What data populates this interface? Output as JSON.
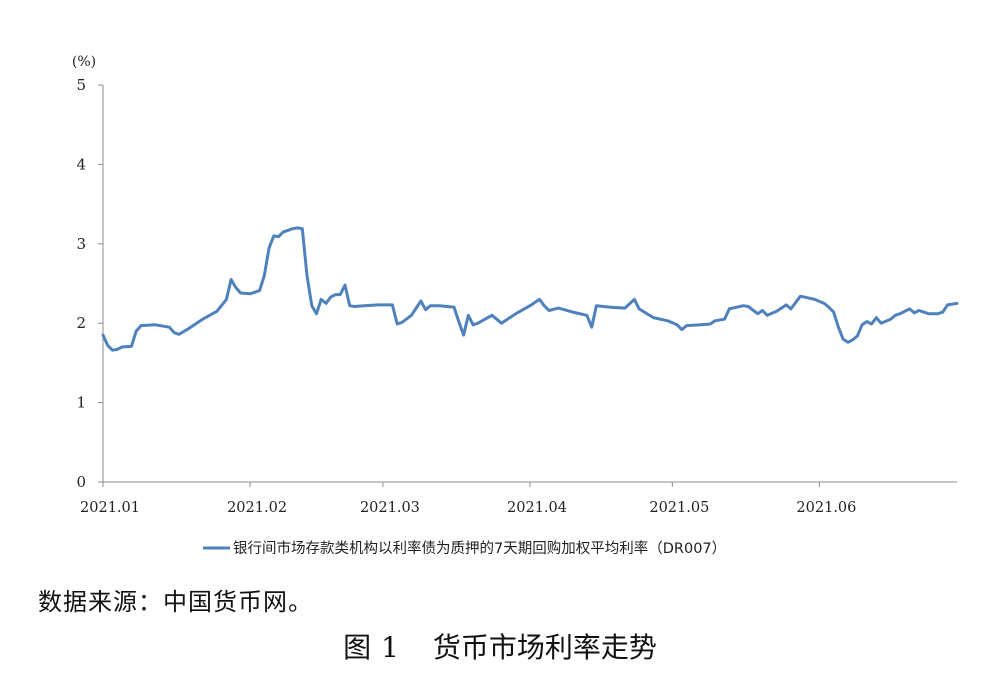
{
  "chart_data": {
    "type": "line",
    "unit_label": "(%)",
    "ylim": [
      0,
      5
    ],
    "yticks": [
      "0",
      "1",
      "2",
      "3",
      "4",
      "5"
    ],
    "x_tick_labels": [
      "2021.01",
      "2021.02",
      "2021.03",
      "2021.04",
      "2021.05",
      "2021.06"
    ],
    "x_tick_dates": [
      "2021-01-01",
      "2021-02-01",
      "2021-03-01",
      "2021-04-01",
      "2021-05-01",
      "2021-06-01"
    ],
    "x_range": [
      "2021-01-01",
      "2021-06-30"
    ],
    "grid": false,
    "legend_position": "bottom",
    "series": [
      {
        "name": "银行间市场存款类机构以利率债为质押的7天期回购加权平均利率（DR007）",
        "color": "#4f81bd",
        "points": [
          [
            "2021-01-01",
            1.85
          ],
          [
            "2021-01-02",
            1.72
          ],
          [
            "2021-01-03",
            1.66
          ],
          [
            "2021-01-04",
            1.67
          ],
          [
            "2021-01-05",
            1.7
          ],
          [
            "2021-01-07",
            1.71
          ],
          [
            "2021-01-08",
            1.9
          ],
          [
            "2021-01-09",
            1.97
          ],
          [
            "2021-01-12",
            1.98
          ],
          [
            "2021-01-15",
            1.95
          ],
          [
            "2021-01-16",
            1.88
          ],
          [
            "2021-01-17",
            1.86
          ],
          [
            "2021-01-19",
            1.93
          ],
          [
            "2021-01-22",
            2.05
          ],
          [
            "2021-01-25",
            2.15
          ],
          [
            "2021-01-27",
            2.3
          ],
          [
            "2021-01-28",
            2.55
          ],
          [
            "2021-01-29",
            2.45
          ],
          [
            "2021-01-30",
            2.38
          ],
          [
            "2021-02-01",
            2.37
          ],
          [
            "2021-02-03",
            2.41
          ],
          [
            "2021-02-04",
            2.6
          ],
          [
            "2021-02-05",
            2.95
          ],
          [
            "2021-02-06",
            3.1
          ],
          [
            "2021-02-07",
            3.09
          ],
          [
            "2021-02-08",
            3.15
          ],
          [
            "2021-02-10",
            3.19
          ],
          [
            "2021-02-11",
            3.2
          ],
          [
            "2021-02-12",
            3.19
          ],
          [
            "2021-02-13",
            2.6
          ],
          [
            "2021-02-14",
            2.22
          ],
          [
            "2021-02-15",
            2.12
          ],
          [
            "2021-02-16",
            2.3
          ],
          [
            "2021-02-17",
            2.25
          ],
          [
            "2021-02-18",
            2.33
          ],
          [
            "2021-02-19",
            2.36
          ],
          [
            "2021-02-20",
            2.36
          ],
          [
            "2021-02-21",
            2.48
          ],
          [
            "2021-02-22",
            2.22
          ],
          [
            "2021-02-23",
            2.21
          ],
          [
            "2021-02-25",
            2.22
          ],
          [
            "2021-02-28",
            2.23
          ],
          [
            "2021-03-03",
            2.23
          ],
          [
            "2021-03-04",
            1.99
          ],
          [
            "2021-03-05",
            2.01
          ],
          [
            "2021-03-07",
            2.1
          ],
          [
            "2021-03-09",
            2.28
          ],
          [
            "2021-03-10",
            2.17
          ],
          [
            "2021-03-11",
            2.22
          ],
          [
            "2021-03-13",
            2.22
          ],
          [
            "2021-03-16",
            2.2
          ],
          [
            "2021-03-17",
            2.02
          ],
          [
            "2021-03-18",
            1.85
          ],
          [
            "2021-03-19",
            2.1
          ],
          [
            "2021-03-20",
            1.98
          ],
          [
            "2021-03-21",
            2.0
          ],
          [
            "2021-03-24",
            2.1
          ],
          [
            "2021-03-26",
            2.0
          ],
          [
            "2021-03-29",
            2.12
          ],
          [
            "2021-04-01",
            2.22
          ],
          [
            "2021-04-03",
            2.3
          ],
          [
            "2021-04-04",
            2.22
          ],
          [
            "2021-04-05",
            2.16
          ],
          [
            "2021-04-07",
            2.19
          ],
          [
            "2021-04-10",
            2.14
          ],
          [
            "2021-04-13",
            2.1
          ],
          [
            "2021-04-14",
            1.95
          ],
          [
            "2021-04-15",
            2.22
          ],
          [
            "2021-04-18",
            2.2
          ],
          [
            "2021-04-21",
            2.19
          ],
          [
            "2021-04-23",
            2.3
          ],
          [
            "2021-04-24",
            2.18
          ],
          [
            "2021-04-27",
            2.07
          ],
          [
            "2021-04-30",
            2.03
          ],
          [
            "2021-05-02",
            1.98
          ],
          [
            "2021-05-03",
            1.92
          ],
          [
            "2021-05-04",
            1.97
          ],
          [
            "2021-05-07",
            1.98
          ],
          [
            "2021-05-09",
            1.99
          ],
          [
            "2021-05-10",
            2.03
          ],
          [
            "2021-05-12",
            2.05
          ],
          [
            "2021-05-13",
            2.18
          ],
          [
            "2021-05-16",
            2.22
          ],
          [
            "2021-05-17",
            2.21
          ],
          [
            "2021-05-19",
            2.12
          ],
          [
            "2021-05-20",
            2.16
          ],
          [
            "2021-05-21",
            2.1
          ],
          [
            "2021-05-23",
            2.15
          ],
          [
            "2021-05-25",
            2.23
          ],
          [
            "2021-05-26",
            2.18
          ],
          [
            "2021-05-28",
            2.34
          ],
          [
            "2021-05-31",
            2.3
          ],
          [
            "2021-06-02",
            2.25
          ],
          [
            "2021-06-03",
            2.2
          ],
          [
            "2021-06-04",
            2.14
          ],
          [
            "2021-06-05",
            1.95
          ],
          [
            "2021-06-06",
            1.8
          ],
          [
            "2021-06-07",
            1.76
          ],
          [
            "2021-06-08",
            1.79
          ],
          [
            "2021-06-09",
            1.84
          ],
          [
            "2021-06-10",
            1.98
          ],
          [
            "2021-06-11",
            2.02
          ],
          [
            "2021-06-12",
            1.99
          ],
          [
            "2021-06-13",
            2.07
          ],
          [
            "2021-06-14",
            2.0
          ],
          [
            "2021-06-16",
            2.05
          ],
          [
            "2021-06-17",
            2.1
          ],
          [
            "2021-06-18",
            2.12
          ],
          [
            "2021-06-20",
            2.18
          ],
          [
            "2021-06-21",
            2.13
          ],
          [
            "2021-06-22",
            2.16
          ],
          [
            "2021-06-24",
            2.12
          ],
          [
            "2021-06-26",
            2.12
          ],
          [
            "2021-06-27",
            2.14
          ],
          [
            "2021-06-28",
            2.23
          ],
          [
            "2021-06-30",
            2.25
          ]
        ]
      }
    ]
  },
  "source_text": "数据来源：中国货币网。",
  "caption": {
    "label": "图",
    "number": "1",
    "title": "货币市场利率走势"
  }
}
